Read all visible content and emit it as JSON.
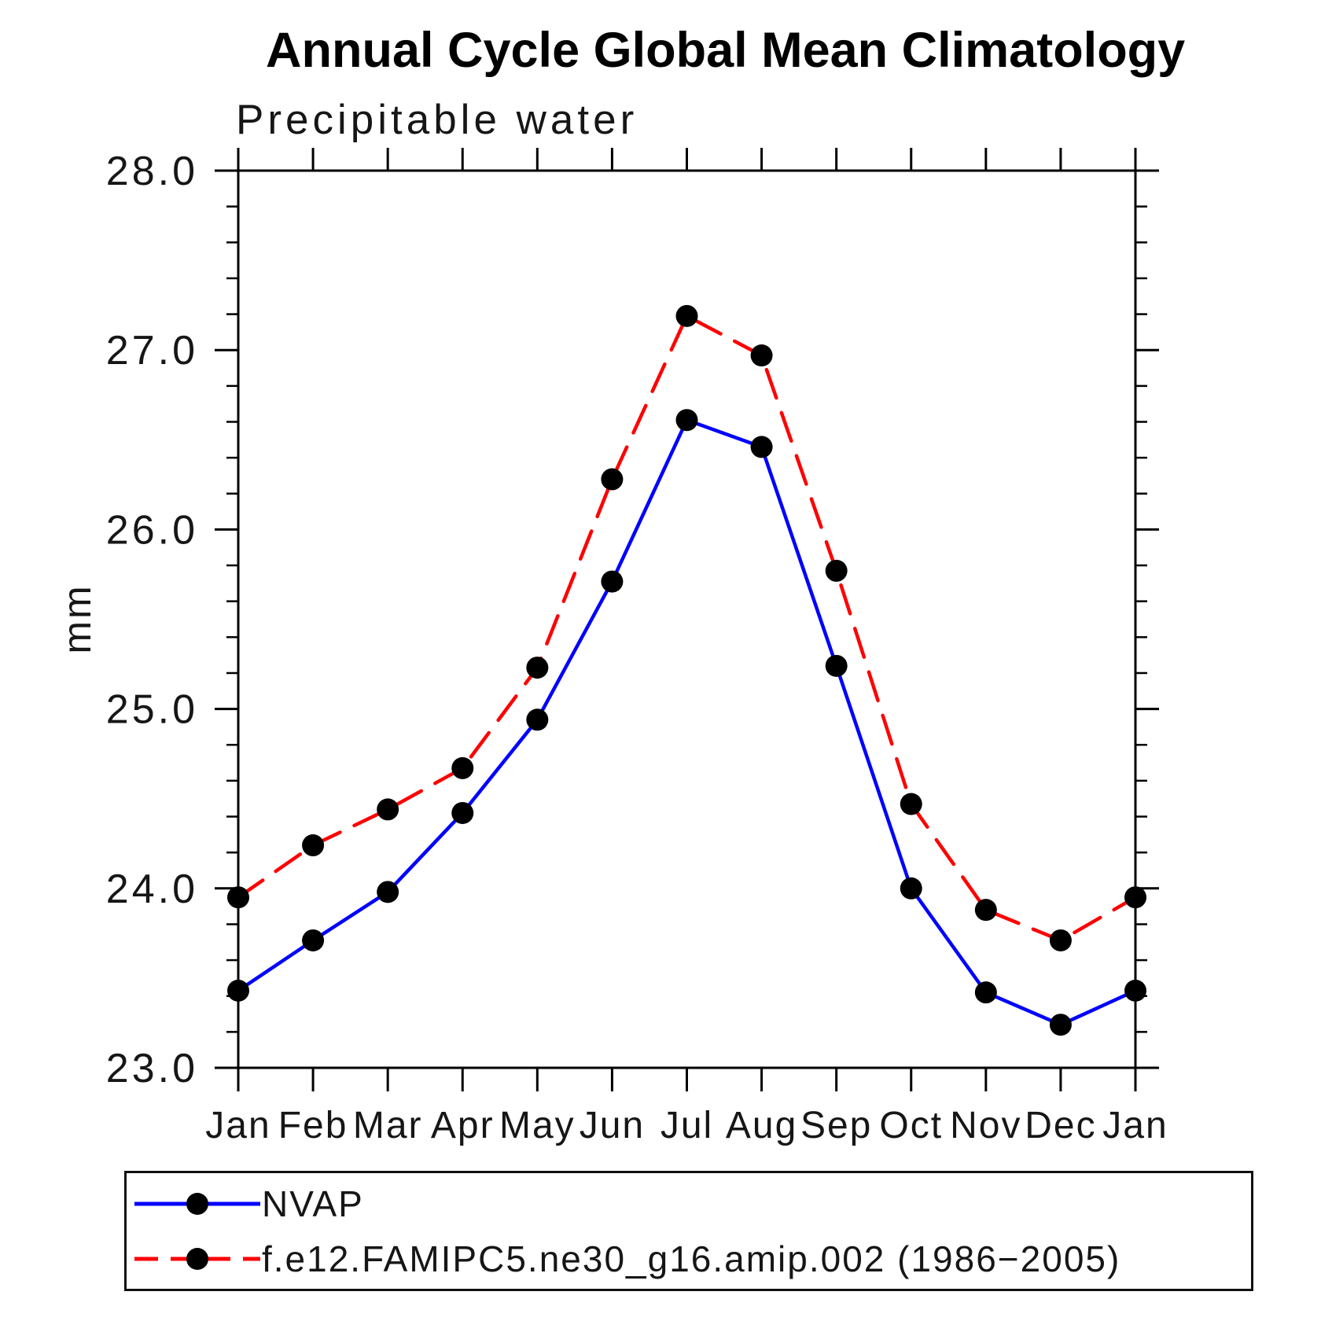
{
  "chart_data": {
    "type": "line",
    "title": "Annual Cycle Global Mean Climatology",
    "subtitle": "Precipitable water",
    "ylabel": "mm",
    "xlabel": "",
    "categories": [
      "Jan",
      "Feb",
      "Mar",
      "Apr",
      "May",
      "Jun",
      "Jul",
      "Aug",
      "Sep",
      "Oct",
      "Nov",
      "Dec",
      "Jan"
    ],
    "series": [
      {
        "name": "NVAP",
        "color": "#0000ff",
        "line_style": "solid",
        "marker": "filled-black-circle",
        "values": [
          23.43,
          23.71,
          23.98,
          24.42,
          24.94,
          25.71,
          26.61,
          26.46,
          25.24,
          24.0,
          23.42,
          23.24,
          23.43
        ]
      },
      {
        "name": "f.e12.FAMIPC5.ne30_g16.amip.002 (1986−2005)",
        "color": "#ff0000",
        "line_style": "dashed",
        "marker": "filled-black-circle",
        "values": [
          23.95,
          24.24,
          24.44,
          24.67,
          25.23,
          26.28,
          27.19,
          26.97,
          25.77,
          24.47,
          23.88,
          23.71,
          23.95
        ]
      }
    ],
    "ylim": [
      23.0,
      28.0
    ],
    "ytick_labels": [
      "23.0",
      "24.0",
      "25.0",
      "26.0",
      "27.0",
      "28.0"
    ],
    "ytick_interval": 1.0,
    "yminor_interval": 0.2,
    "grid": false,
    "frame": "closed-box-with-outward-ticks",
    "axis_color": "#000000",
    "marker_color": "#000000",
    "legend_position": "bottom-left-boxed"
  }
}
